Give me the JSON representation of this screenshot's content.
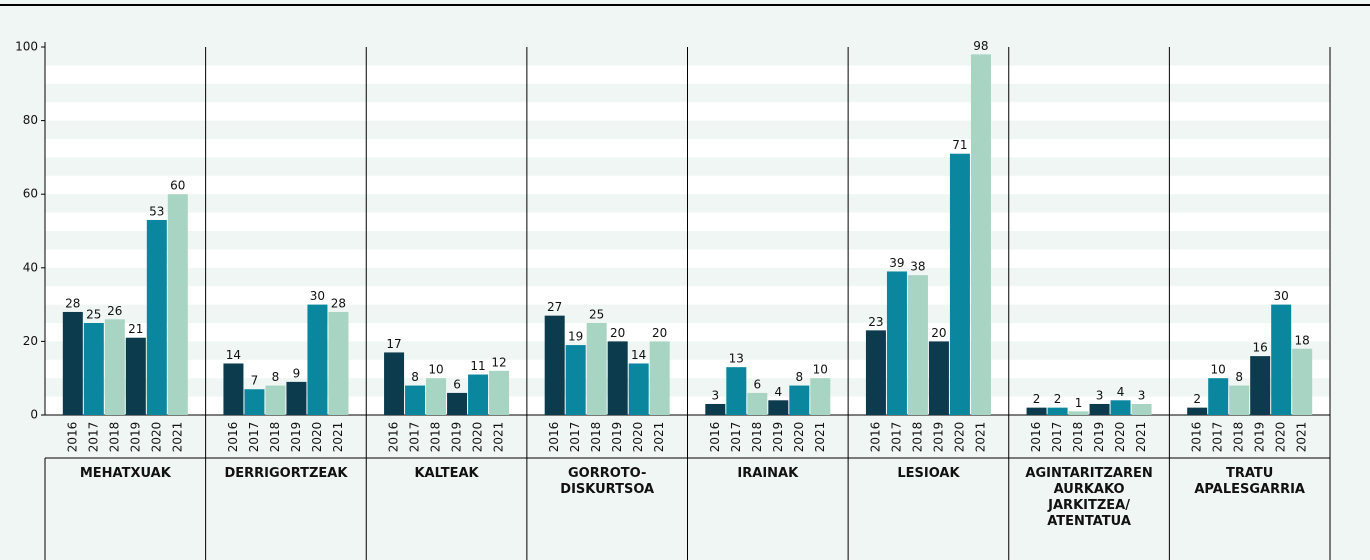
{
  "chart_data": {
    "type": "bar",
    "categories": [
      "MEHATXUAK",
      "DERRIGORTZEAK",
      "KALTEAK",
      "GORROTO-\nDISKURTSOA",
      "IRAINAK",
      "LESIOAK",
      "AGINTARITZAREN\nAURKAKO\nJARKITZEA/\nATENTATUA",
      "TRATU\nAPALESGARRIA"
    ],
    "series": [
      {
        "name": "2016",
        "color": "#0c3b4e",
        "values": [
          28,
          14,
          17,
          27,
          3,
          23,
          2,
          2
        ]
      },
      {
        "name": "2017",
        "color": "#0a879f",
        "values": [
          25,
          7,
          8,
          19,
          13,
          39,
          2,
          10
        ]
      },
      {
        "name": "2018",
        "color": "#a8d4c3",
        "values": [
          26,
          8,
          10,
          25,
          6,
          38,
          1,
          8
        ]
      },
      {
        "name": "2019",
        "color": "#0c3b4e",
        "values": [
          21,
          9,
          6,
          20,
          4,
          20,
          3,
          16
        ]
      },
      {
        "name": "2020",
        "color": "#0a879f",
        "values": [
          53,
          30,
          11,
          14,
          8,
          71,
          4,
          30
        ]
      },
      {
        "name": "2021",
        "color": "#a8d4c3",
        "values": [
          60,
          28,
          12,
          20,
          10,
          98,
          3,
          18
        ]
      }
    ],
    "ylim": [
      0,
      100
    ],
    "yticks": [
      0,
      20,
      40,
      60,
      80,
      100
    ],
    "grid": true
  }
}
